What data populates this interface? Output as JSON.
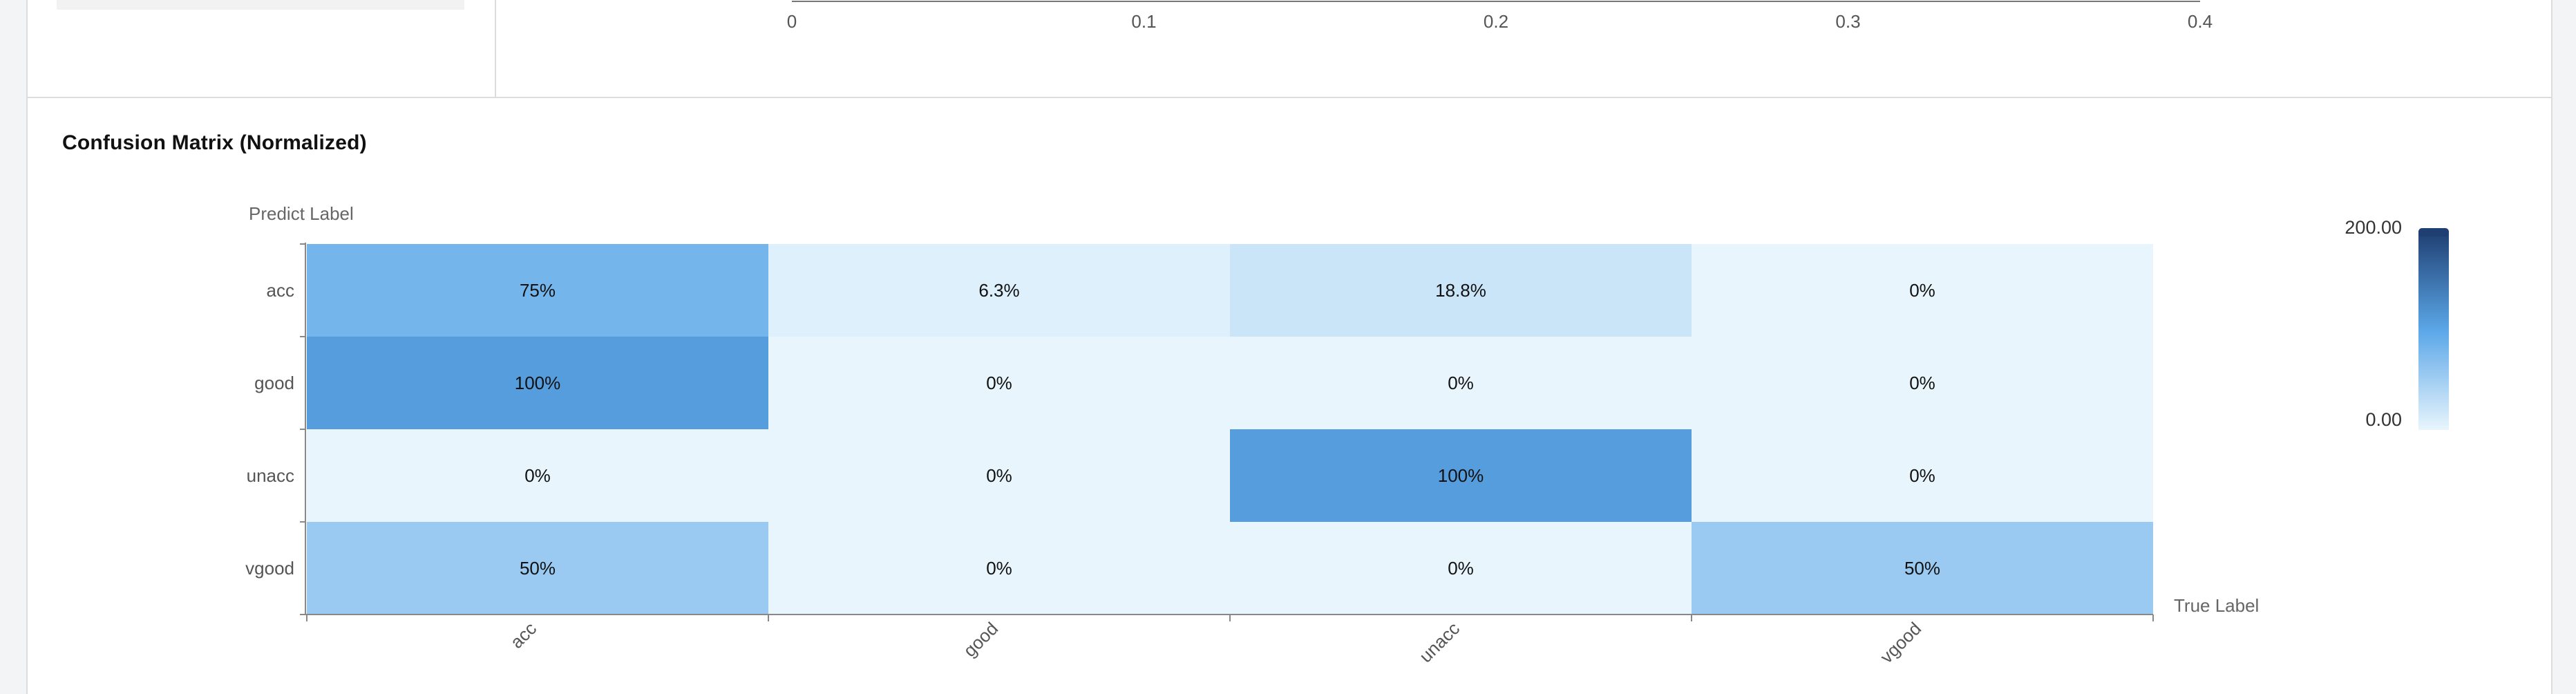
{
  "top_chart": {
    "x_ticks": [
      "0",
      "0.1",
      "0.2",
      "0.3",
      "0.4"
    ]
  },
  "section": {
    "title": "Confusion Matrix (Normalized)"
  },
  "chart_data": {
    "type": "heatmap",
    "title": "Confusion Matrix (Normalized)",
    "ylabel": "Predict Label",
    "xlabel": "True Label",
    "rows": [
      "acc",
      "good",
      "unacc",
      "vgood"
    ],
    "columns": [
      "acc",
      "good",
      "unacc",
      "vgood"
    ],
    "values": [
      [
        75,
        6.3,
        18.8,
        0
      ],
      [
        100,
        0,
        0,
        0
      ],
      [
        0,
        0,
        100,
        0
      ],
      [
        50,
        0,
        0,
        50
      ]
    ],
    "cell_labels": [
      [
        "75%",
        "6.3%",
        "18.8%",
        "0%"
      ],
      [
        "100%",
        "0%",
        "0%",
        "0%"
      ],
      [
        "0%",
        "0%",
        "100%",
        "0%"
      ],
      [
        "50%",
        "0%",
        "0%",
        "50%"
      ]
    ],
    "colorscale": {
      "min_label": "0.00",
      "max_label": "200.00",
      "min": 0,
      "max": 200,
      "colors": [
        "#e8f5fc",
        "#5ba7e8",
        "#1f3f72"
      ]
    }
  }
}
